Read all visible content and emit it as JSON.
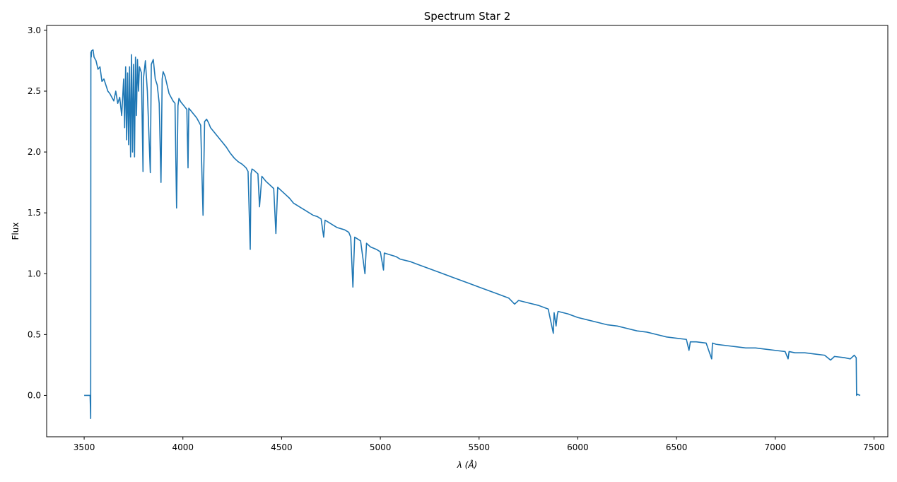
{
  "chart_data": {
    "type": "line",
    "title": "Spectrum Star 2",
    "xlabel": "λ (Å)",
    "ylabel": "Flux",
    "xlim": [
      3310,
      7570
    ],
    "ylim": [
      -0.34,
      3.04
    ],
    "xticks": [
      3500,
      4000,
      4500,
      5000,
      5500,
      6000,
      6500,
      7000,
      7500
    ],
    "yticks": [
      0.0,
      0.5,
      1.0,
      1.5,
      2.0,
      2.5,
      3.0
    ],
    "ytick_labels": [
      "0.0",
      "0.5",
      "1.0",
      "1.5",
      "2.0",
      "2.5",
      "3.0"
    ],
    "grid": false,
    "line_color": "#1f77b4",
    "series": [
      {
        "x": [
          3500,
          3530,
          3533,
          3534,
          3536,
          3537,
          3545,
          3550,
          3560,
          3570,
          3580,
          3590,
          3600,
          3610,
          3620,
          3630,
          3640,
          3650,
          3660,
          3670,
          3680,
          3690,
          3700,
          3705,
          3710,
          3715,
          3720,
          3725,
          3730,
          3735,
          3740,
          3745,
          3750,
          3755,
          3760,
          3765,
          3770,
          3775,
          3780,
          3790,
          3798,
          3800,
          3810,
          3820,
          3835,
          3840,
          3850,
          3860,
          3870,
          3880,
          3889,
          3895,
          3900,
          3910,
          3920,
          3930,
          3940,
          3950,
          3960,
          3968,
          3975,
          3980,
          3990,
          4000,
          4010,
          4020,
          4026,
          4030,
          4040,
          4050,
          4060,
          4070,
          4080,
          4090,
          4102,
          4110,
          4120,
          4130,
          4140,
          4150,
          4160,
          4170,
          4180,
          4190,
          4200,
          4220,
          4240,
          4260,
          4280,
          4300,
          4320,
          4330,
          4341,
          4345,
          4350,
          4360,
          4380,
          4388,
          4400,
          4420,
          4440,
          4460,
          4471,
          4480,
          4500,
          4520,
          4540,
          4560,
          4580,
          4600,
          4620,
          4640,
          4660,
          4680,
          4700,
          4713,
          4720,
          4740,
          4760,
          4780,
          4800,
          4820,
          4840,
          4850,
          4861,
          4870,
          4880,
          4900,
          4922,
          4930,
          4950,
          4980,
          5000,
          5016,
          5020,
          5040,
          5080,
          5100,
          5150,
          5200,
          5250,
          5300,
          5350,
          5400,
          5450,
          5500,
          5550,
          5600,
          5650,
          5680,
          5700,
          5750,
          5800,
          5850,
          5876,
          5880,
          5890,
          5896,
          5900,
          5950,
          6000,
          6050,
          6100,
          6150,
          6200,
          6250,
          6300,
          6350,
          6400,
          6450,
          6500,
          6550,
          6563,
          6570,
          6600,
          6650,
          6678,
          6682,
          6700,
          6750,
          6800,
          6850,
          6900,
          6950,
          7000,
          7050,
          7065,
          7070,
          7100,
          7150,
          7200,
          7250,
          7280,
          7300,
          7350,
          7380,
          7400,
          7410,
          7412,
          7415,
          7430
        ],
        "y": [
          0.0,
          0.0,
          -0.19,
          2.82,
          2.78,
          2.83,
          2.84,
          2.78,
          2.75,
          2.68,
          2.7,
          2.58,
          2.6,
          2.55,
          2.5,
          2.48,
          2.45,
          2.42,
          2.5,
          2.4,
          2.45,
          2.3,
          2.6,
          2.2,
          2.7,
          2.1,
          2.65,
          2.06,
          2.7,
          1.96,
          2.8,
          2.0,
          2.72,
          1.96,
          2.78,
          2.3,
          2.76,
          2.5,
          2.7,
          2.65,
          1.84,
          2.6,
          2.75,
          2.5,
          1.83,
          2.72,
          2.76,
          2.6,
          2.55,
          2.4,
          1.75,
          2.6,
          2.66,
          2.62,
          2.55,
          2.48,
          2.45,
          2.42,
          2.4,
          1.54,
          2.38,
          2.44,
          2.41,
          2.39,
          2.37,
          2.35,
          1.87,
          2.36,
          2.34,
          2.32,
          2.3,
          2.28,
          2.25,
          2.22,
          1.48,
          2.25,
          2.27,
          2.24,
          2.2,
          2.18,
          2.16,
          2.14,
          2.12,
          2.1,
          2.08,
          2.04,
          1.99,
          1.95,
          1.92,
          1.9,
          1.87,
          1.84,
          1.2,
          1.82,
          1.86,
          1.85,
          1.82,
          1.55,
          1.8,
          1.76,
          1.73,
          1.7,
          1.33,
          1.71,
          1.68,
          1.65,
          1.62,
          1.58,
          1.56,
          1.54,
          1.52,
          1.5,
          1.48,
          1.47,
          1.45,
          1.3,
          1.44,
          1.42,
          1.4,
          1.38,
          1.37,
          1.36,
          1.34,
          1.3,
          0.89,
          1.3,
          1.29,
          1.27,
          1.0,
          1.25,
          1.22,
          1.2,
          1.18,
          1.03,
          1.17,
          1.16,
          1.14,
          1.12,
          1.1,
          1.07,
          1.04,
          1.01,
          0.98,
          0.95,
          0.92,
          0.89,
          0.86,
          0.83,
          0.8,
          0.75,
          0.78,
          0.76,
          0.74,
          0.71,
          0.51,
          0.68,
          0.57,
          0.66,
          0.69,
          0.67,
          0.64,
          0.62,
          0.6,
          0.58,
          0.57,
          0.55,
          0.53,
          0.52,
          0.5,
          0.48,
          0.47,
          0.46,
          0.37,
          0.44,
          0.44,
          0.43,
          0.3,
          0.43,
          0.42,
          0.41,
          0.4,
          0.39,
          0.39,
          0.38,
          0.37,
          0.36,
          0.3,
          0.36,
          0.35,
          0.35,
          0.34,
          0.33,
          0.29,
          0.32,
          0.31,
          0.3,
          0.33,
          0.31,
          0.0,
          0.01,
          0.0
        ]
      }
    ]
  }
}
